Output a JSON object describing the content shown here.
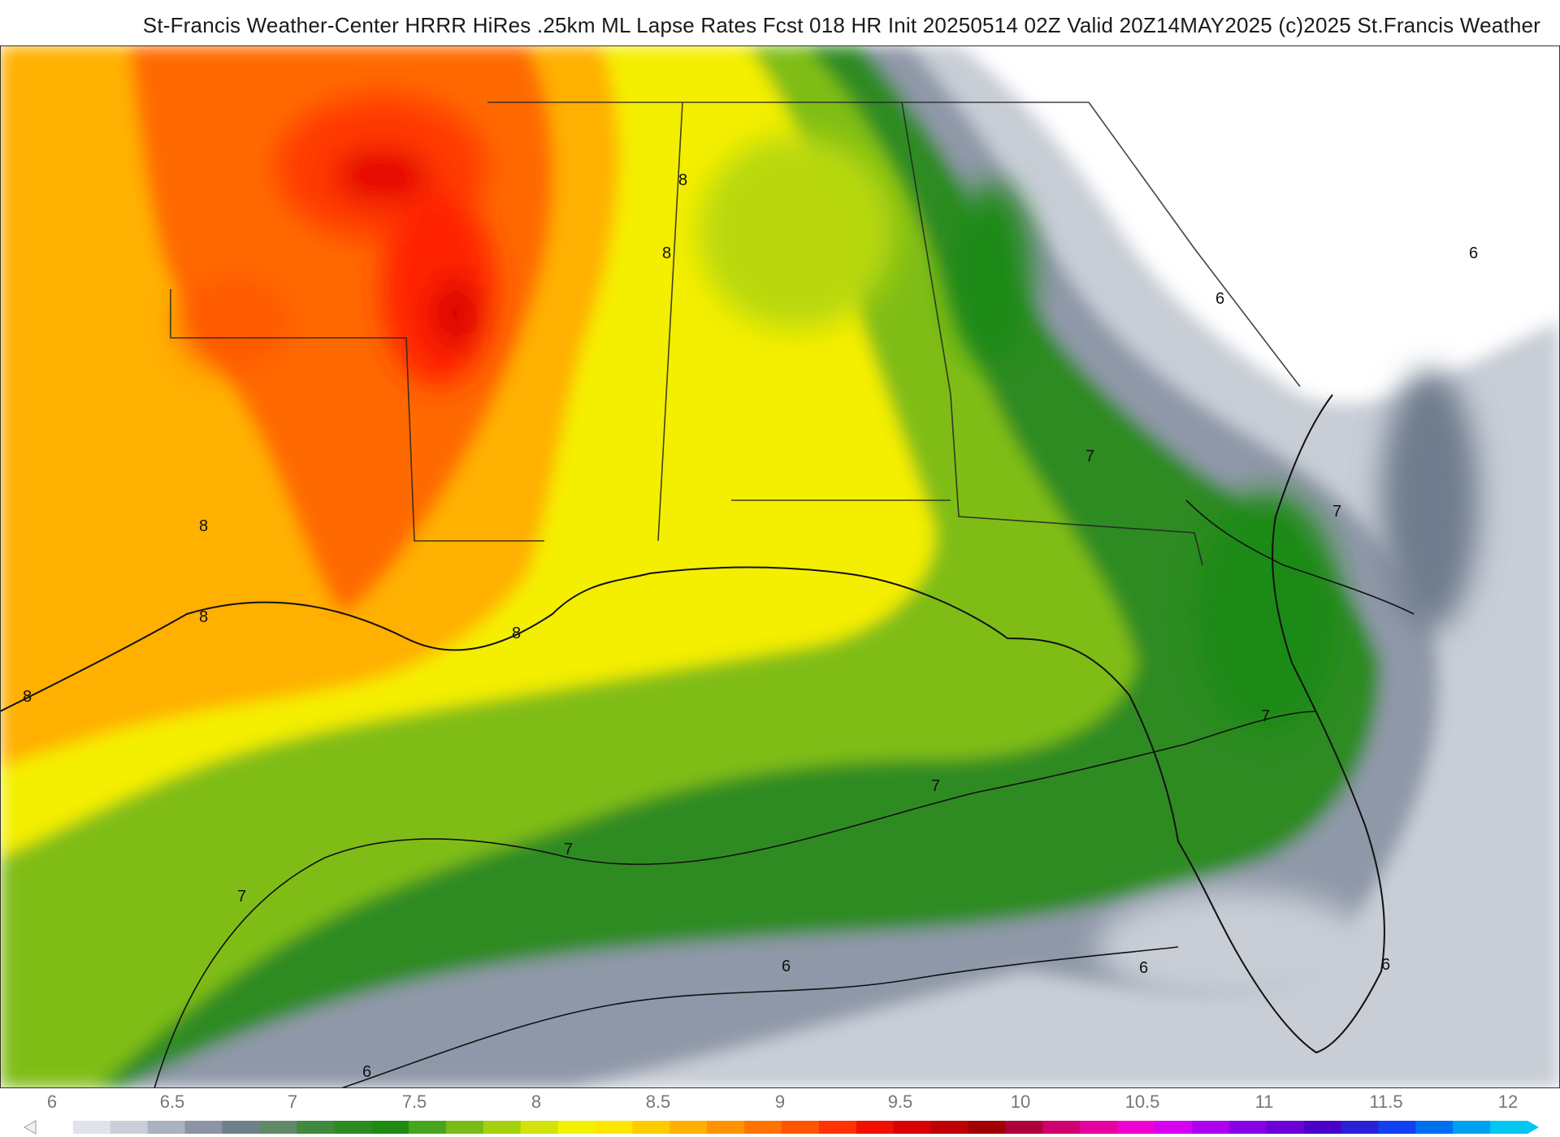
{
  "header": {
    "title": "St-Francis Weather-Center HRRR HiRes .25km ML Lapse Rates  Fcst 018 HR Init 20250514 02Z  Valid 20Z14MAY2025    (c)2025 St.Francis Weather"
  },
  "map": {
    "region": "US Gulf Coast / Southeast",
    "field": "ML Lapse Rates",
    "contour_labels": [
      {
        "text": "8"
      },
      {
        "text": "8"
      },
      {
        "text": "8"
      },
      {
        "text": "8"
      },
      {
        "text": "8"
      },
      {
        "text": "8"
      },
      {
        "text": "7"
      },
      {
        "text": "7"
      },
      {
        "text": "7"
      },
      {
        "text": "7"
      },
      {
        "text": "7"
      },
      {
        "text": "7"
      },
      {
        "text": "6"
      },
      {
        "text": "6"
      },
      {
        "text": "6"
      },
      {
        "text": "6"
      },
      {
        "text": "6"
      },
      {
        "text": "6"
      }
    ]
  },
  "colorbar": {
    "ticks": [
      "6",
      "6.5",
      "7",
      "7.5",
      "8",
      "8.5",
      "9",
      "9.5",
      "10",
      "10.5",
      "11",
      "11.5",
      "12"
    ],
    "colors": [
      "#ffffff",
      "#dfe3ea",
      "#c9ced8",
      "#aab1bf",
      "#8c94a5",
      "#6f8089",
      "#5f8a6a",
      "#3f8a3f",
      "#2e8b22",
      "#1e8a14",
      "#46a41e",
      "#78bc16",
      "#a6d10e",
      "#d3e20a",
      "#f4f200",
      "#ffe600",
      "#ffcc00",
      "#ffb000",
      "#ff9200",
      "#ff7400",
      "#ff5400",
      "#ff3200",
      "#f20f00",
      "#d80000",
      "#bd0000",
      "#a10000",
      "#b0003c",
      "#cf0070",
      "#e800a0",
      "#f000d0",
      "#d800f0",
      "#b000f0",
      "#8a00e6",
      "#6a00d6",
      "#4a00c8",
      "#2a20d8",
      "#1040f0",
      "#0070f0",
      "#00a0f0",
      "#00c8f0"
    ]
  }
}
